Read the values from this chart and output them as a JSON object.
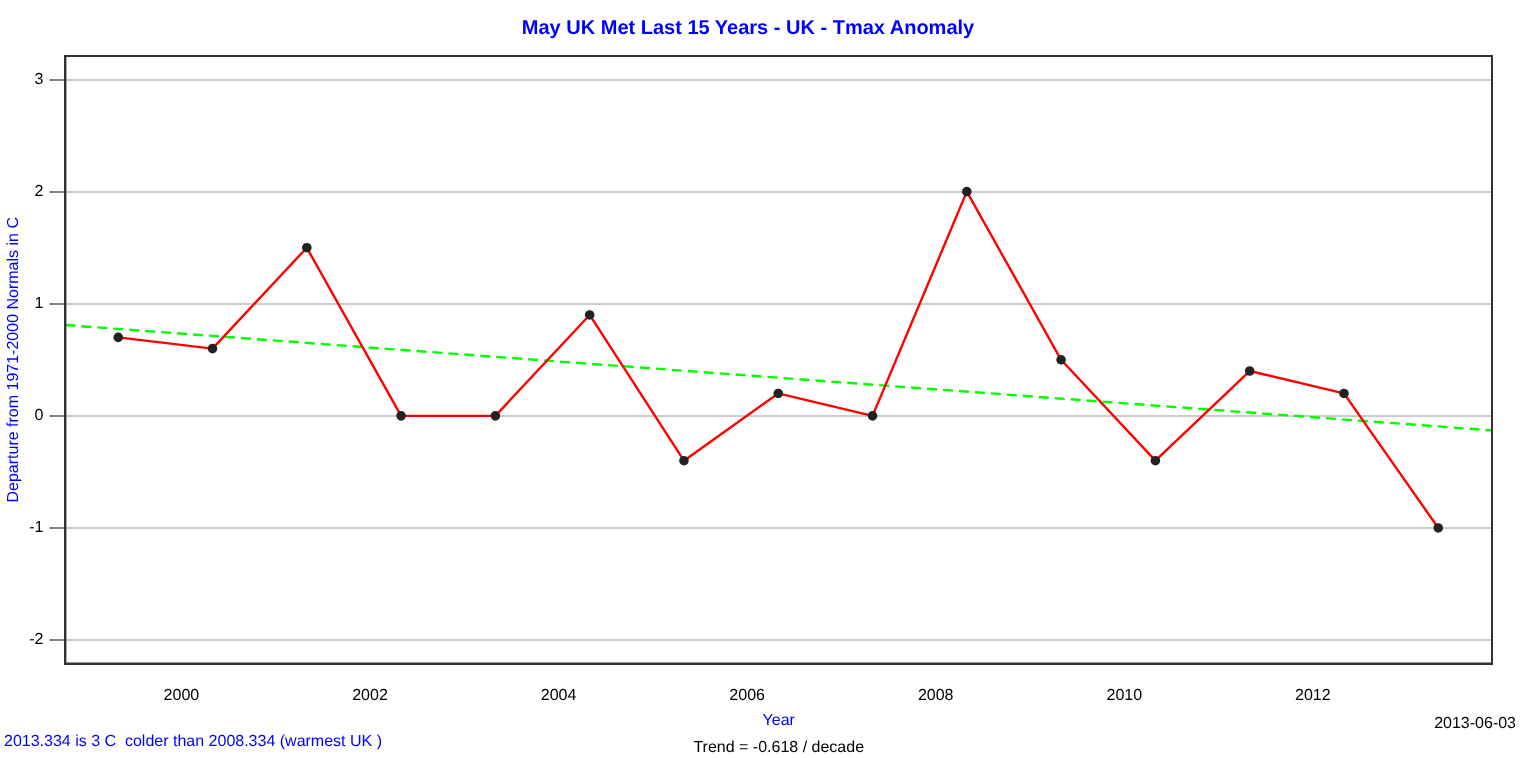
{
  "chart_data": {
    "type": "line",
    "title": "May UK Met Last 15 Years - UK - Tmax Anomaly",
    "xlabel": "Year",
    "ylabel": "Departure from 1971-2000 Normals in C",
    "annotations": [
      "2013.334 is 3 C  colder than 2008.334 (warmest UK )",
      "Trend = -0.618 / decade",
      "2013-06-03"
    ],
    "x": [
      1999.33,
      2000.33,
      2001.33,
      2002.33,
      2003.33,
      2004.33,
      2005.33,
      2006.33,
      2007.33,
      2008.33,
      2009.33,
      2010.33,
      2011.33,
      2012.33,
      2013.33
    ],
    "series": [
      {
        "color": "#ff0000",
        "values": [
          0.7,
          0.6,
          1.5,
          0,
          0,
          0.9,
          -0.4,
          0.2,
          0,
          2.0,
          0.5,
          -0.4,
          0.4,
          0.2,
          -1.0
        ],
        "marker": "circle"
      },
      {
        "type": "line",
        "color": "#00ff00",
        "x": [
          1998.77,
          2013.9
        ],
        "values": [
          0.81,
          -0.13
        ],
        "line_style": "dashed",
        "marker": "none"
      }
    ],
    "xlim": [
      1998.77,
      2013.9
    ],
    "xticks": [
      2000,
      2002,
      2004,
      2006,
      2008,
      2010,
      2012
    ],
    "ylim": [
      -2.21,
      3.21
    ],
    "yticks": [
      -2,
      -1,
      0,
      1,
      2,
      3
    ],
    "grid": "y",
    "legend": false
  }
}
